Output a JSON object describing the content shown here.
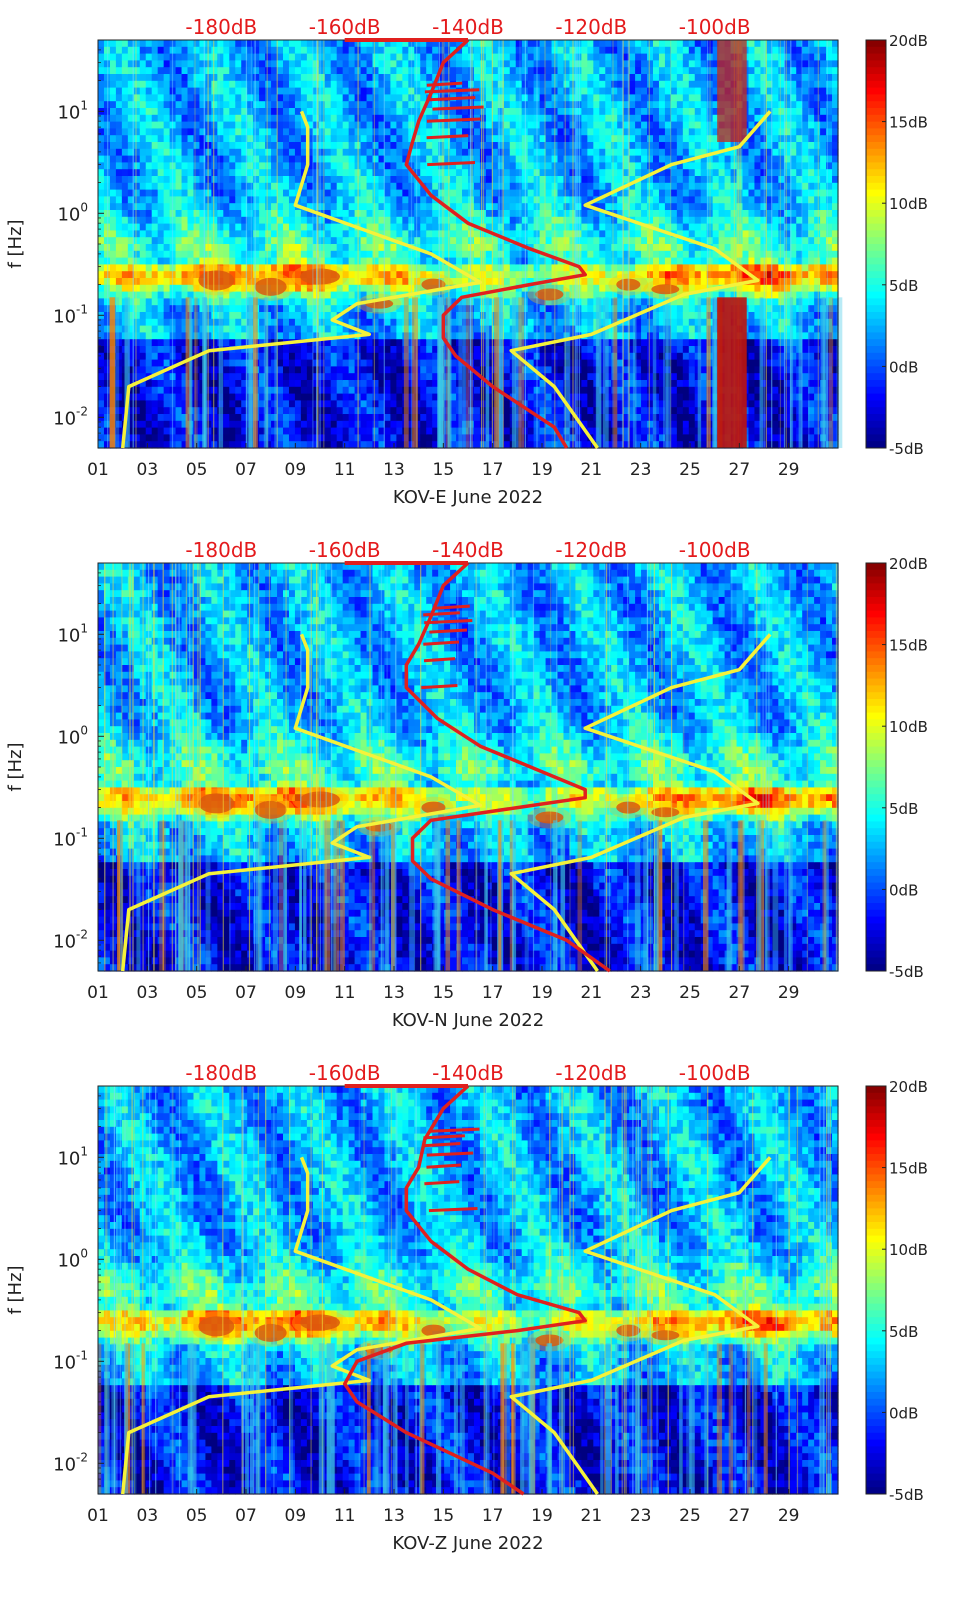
{
  "chart_data": [
    {
      "type": "heatmap",
      "xlabel": "KOV-E June 2022",
      "ylabel": "f [Hz]",
      "x_ticks": [
        "01",
        "03",
        "05",
        "07",
        "09",
        "11",
        "13",
        "15",
        "17",
        "19",
        "21",
        "23",
        "25",
        "27",
        "29"
      ],
      "y_ticks": [
        "10^-2",
        "10^-1",
        "10^0",
        "10^1"
      ],
      "xlim": [
        1,
        31
      ],
      "ylim_hz": [
        0.005,
        50
      ],
      "y_scale": "log",
      "top_axis_ticks": [
        "-180dB",
        "-160dB",
        "-140dB",
        "-120dB",
        "-100dB"
      ],
      "top_axis_color": "#e41a1c",
      "colorbar": {
        "ticks": [
          "20dB",
          "15dB",
          "10dB",
          "5dB",
          "0dB",
          "-5dB"
        ],
        "range_db": [
          -5,
          20
        ],
        "colormap": "jet"
      },
      "noise_models": {
        "color": "#f5f23a",
        "lnm": [
          [
            -167,
            10
          ],
          [
            -166,
            7
          ],
          [
            -166,
            3
          ],
          [
            -168,
            1.2
          ],
          [
            -146,
            0.4
          ],
          [
            -138,
            0.21
          ],
          [
            -158,
            0.13
          ],
          [
            -162,
            0.09
          ],
          [
            -156,
            0.065
          ],
          [
            -182,
            0.045
          ],
          [
            -195,
            0.02
          ],
          [
            -196,
            0.005
          ]
        ],
        "hnm": [
          [
            -91,
            10
          ],
          [
            -96,
            4.5
          ],
          [
            -107,
            3
          ],
          [
            -121,
            1.2
          ],
          [
            -100,
            0.45
          ],
          [
            -93,
            0.22
          ],
          [
            -105,
            0.16
          ],
          [
            -120,
            0.065
          ],
          [
            -133,
            0.045
          ],
          [
            -126,
            0.02
          ],
          [
            -119,
            0.005
          ]
        ]
      },
      "psd_curve": {
        "color": "#e0201e",
        "points": [
          [
            -140,
            50
          ],
          [
            -144,
            30
          ],
          [
            -146,
            15
          ],
          [
            -148,
            8
          ],
          [
            -149,
            5
          ],
          [
            -150,
            3
          ],
          [
            -146,
            1.5
          ],
          [
            -140,
            0.8
          ],
          [
            -130,
            0.45
          ],
          [
            -122,
            0.3
          ],
          [
            -121,
            0.25
          ],
          [
            -130,
            0.2
          ],
          [
            -141,
            0.15
          ],
          [
            -144,
            0.1
          ],
          [
            -144,
            0.06
          ],
          [
            -142,
            0.04
          ],
          [
            -136,
            0.02
          ],
          [
            -126,
            0.008
          ],
          [
            -124,
            0.005
          ]
        ]
      }
    },
    {
      "type": "heatmap",
      "xlabel": "KOV-N June 2022",
      "ylabel": "f [Hz]",
      "x_ticks": [
        "01",
        "03",
        "05",
        "07",
        "09",
        "11",
        "13",
        "15",
        "17",
        "19",
        "21",
        "23",
        "25",
        "27",
        "29"
      ],
      "y_ticks": [
        "10^-2",
        "10^-1",
        "10^0",
        "10^1"
      ],
      "xlim": [
        1,
        31
      ],
      "ylim_hz": [
        0.005,
        50
      ],
      "y_scale": "log",
      "top_axis_ticks": [
        "-180dB",
        "-160dB",
        "-140dB",
        "-120dB",
        "-100dB"
      ],
      "top_axis_color": "#e41a1c",
      "colorbar": {
        "ticks": [
          "20dB",
          "15dB",
          "10dB",
          "5dB",
          "0dB",
          "-5dB"
        ],
        "range_db": [
          -5,
          20
        ],
        "colormap": "jet"
      },
      "noise_models": {
        "color": "#f5f23a",
        "lnm": [
          [
            -167,
            10
          ],
          [
            -166,
            7
          ],
          [
            -166,
            3
          ],
          [
            -168,
            1.2
          ],
          [
            -146,
            0.4
          ],
          [
            -138,
            0.21
          ],
          [
            -158,
            0.13
          ],
          [
            -162,
            0.09
          ],
          [
            -156,
            0.065
          ],
          [
            -182,
            0.045
          ],
          [
            -195,
            0.02
          ],
          [
            -196,
            0.005
          ]
        ],
        "hnm": [
          [
            -91,
            10
          ],
          [
            -96,
            4.5
          ],
          [
            -107,
            3
          ],
          [
            -121,
            1.2
          ],
          [
            -100,
            0.45
          ],
          [
            -93,
            0.22
          ],
          [
            -105,
            0.16
          ],
          [
            -120,
            0.065
          ],
          [
            -133,
            0.045
          ],
          [
            -126,
            0.02
          ],
          [
            -119,
            0.005
          ]
        ]
      },
      "psd_curve": {
        "color": "#e0201e",
        "points": [
          [
            -140,
            50
          ],
          [
            -144,
            30
          ],
          [
            -146,
            15
          ],
          [
            -148,
            8
          ],
          [
            -150,
            5
          ],
          [
            -150,
            3
          ],
          [
            -145,
            1.5
          ],
          [
            -138,
            0.8
          ],
          [
            -128,
            0.45
          ],
          [
            -121,
            0.3
          ],
          [
            -121,
            0.25
          ],
          [
            -132,
            0.2
          ],
          [
            -146,
            0.15
          ],
          [
            -149,
            0.1
          ],
          [
            -149,
            0.06
          ],
          [
            -146,
            0.04
          ],
          [
            -136,
            0.02
          ],
          [
            -124,
            0.01
          ],
          [
            -117,
            0.005
          ]
        ]
      }
    },
    {
      "type": "heatmap",
      "xlabel": "KOV-Z June 2022",
      "ylabel": "f [Hz]",
      "x_ticks": [
        "01",
        "03",
        "05",
        "07",
        "09",
        "11",
        "13",
        "15",
        "17",
        "19",
        "21",
        "23",
        "25",
        "27",
        "29"
      ],
      "y_ticks": [
        "10^-2",
        "10^-1",
        "10^0",
        "10^1"
      ],
      "xlim": [
        1,
        31
      ],
      "ylim_hz": [
        0.005,
        50
      ],
      "y_scale": "log",
      "top_axis_ticks": [
        "-180dB",
        "-160dB",
        "-140dB",
        "-120dB",
        "-100dB"
      ],
      "top_axis_color": "#e41a1c",
      "colorbar": {
        "ticks": [
          "20dB",
          "15dB",
          "10dB",
          "5dB",
          "0dB",
          "-5dB"
        ],
        "range_db": [
          -5,
          20
        ],
        "colormap": "jet"
      },
      "noise_models": {
        "color": "#f5f23a",
        "lnm": [
          [
            -167,
            10
          ],
          [
            -166,
            7
          ],
          [
            -166,
            3
          ],
          [
            -168,
            1.2
          ],
          [
            -146,
            0.4
          ],
          [
            -138,
            0.21
          ],
          [
            -158,
            0.13
          ],
          [
            -162,
            0.09
          ],
          [
            -156,
            0.065
          ],
          [
            -182,
            0.045
          ],
          [
            -195,
            0.02
          ],
          [
            -196,
            0.005
          ]
        ],
        "hnm": [
          [
            -91,
            10
          ],
          [
            -96,
            4.5
          ],
          [
            -107,
            3
          ],
          [
            -121,
            1.2
          ],
          [
            -100,
            0.45
          ],
          [
            -93,
            0.22
          ],
          [
            -105,
            0.16
          ],
          [
            -120,
            0.065
          ],
          [
            -133,
            0.045
          ],
          [
            -126,
            0.02
          ],
          [
            -119,
            0.005
          ]
        ]
      },
      "psd_curve": {
        "color": "#e0201e",
        "points": [
          [
            -140,
            50
          ],
          [
            -144,
            30
          ],
          [
            -147,
            15
          ],
          [
            -148,
            8
          ],
          [
            -150,
            5
          ],
          [
            -150,
            3
          ],
          [
            -146,
            1.5
          ],
          [
            -140,
            0.8
          ],
          [
            -132,
            0.45
          ],
          [
            -122,
            0.3
          ],
          [
            -121,
            0.25
          ],
          [
            -132,
            0.2
          ],
          [
            -150,
            0.15
          ],
          [
            -158,
            0.1
          ],
          [
            -160,
            0.06
          ],
          [
            -158,
            0.04
          ],
          [
            -150,
            0.02
          ],
          [
            -136,
            0.008
          ],
          [
            -131,
            0.005
          ]
        ]
      }
    }
  ]
}
